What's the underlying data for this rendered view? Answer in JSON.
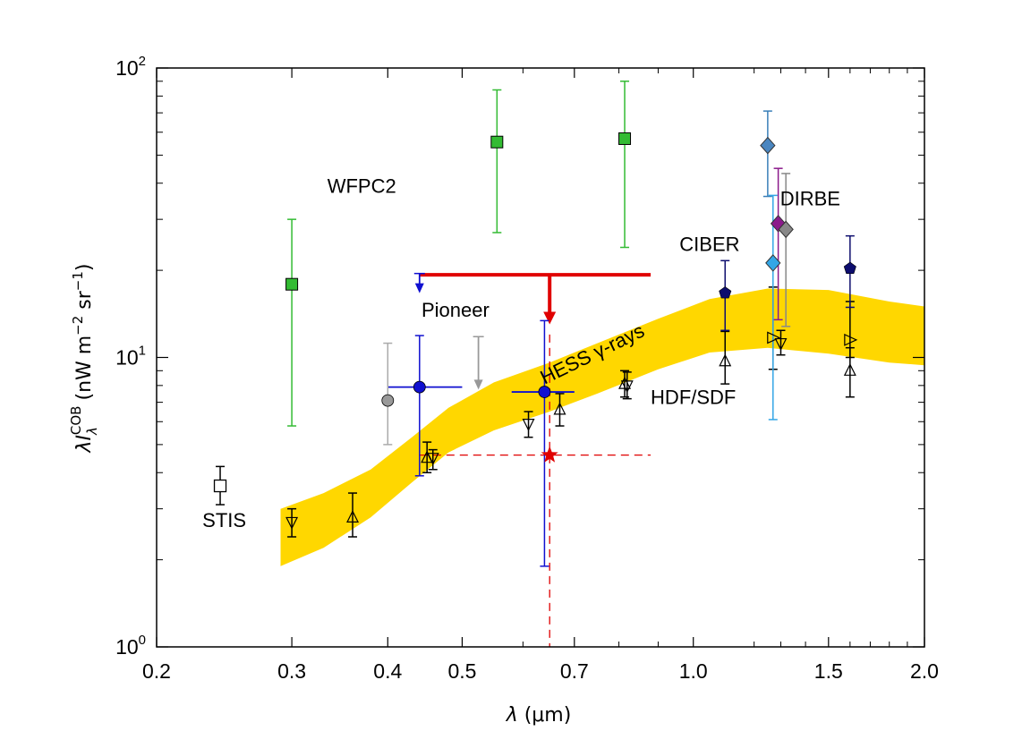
{
  "chart_data": {
    "type": "scatter",
    "title": "",
    "xlabel": "λ (μm)",
    "ylabel": "λI_λ^COB (nW m^-2 sr^-1)",
    "xscale": "log",
    "yscale": "log",
    "xlim": [
      0.2,
      2.0
    ],
    "ylim": [
      1,
      100
    ],
    "grid": false,
    "x_ticks": [
      {
        "value": 0.2,
        "label": "0.2"
      },
      {
        "value": 0.3,
        "label": "0.3"
      },
      {
        "value": 0.4,
        "label": "0.4"
      },
      {
        "value": 0.5,
        "label": "0.5"
      },
      {
        "value": 0.7,
        "label": "0.7"
      },
      {
        "value": 1.0,
        "label": "1.0"
      },
      {
        "value": 1.5,
        "label": "1.5"
      },
      {
        "value": 2.0,
        "label": "2.0"
      }
    ],
    "y_ticks": [
      {
        "value": 1,
        "base": "10",
        "exp": "0"
      },
      {
        "value": 10,
        "base": "10",
        "exp": "1"
      },
      {
        "value": 100,
        "base": "10",
        "exp": "2"
      }
    ],
    "ylabel_parts": {
      "lambda": "λ",
      "I": "I",
      "sub": "λ",
      "sup": "COB",
      "units": "(nW m",
      "m_exp": "−2",
      "sr": " sr",
      "sr_exp": "−1",
      "close": ")"
    },
    "xlabel_parts": {
      "lambda": "λ",
      "units": " (μm)"
    },
    "band": {
      "name": "HESS γ-rays",
      "color": "#FFD700",
      "upper": [
        [
          0.29,
          3.0
        ],
        [
          0.33,
          3.4
        ],
        [
          0.38,
          4.1
        ],
        [
          0.43,
          5.3
        ],
        [
          0.48,
          6.7
        ],
        [
          0.55,
          8.2
        ],
        [
          0.65,
          9.6
        ],
        [
          0.75,
          11.2
        ],
        [
          0.9,
          13.6
        ],
        [
          1.05,
          15.9
        ],
        [
          1.25,
          17.3
        ],
        [
          1.5,
          17.1
        ],
        [
          1.8,
          15.6
        ],
        [
          2.0,
          15.0
        ]
      ],
      "lower": [
        [
          2.0,
          9.4
        ],
        [
          1.8,
          9.6
        ],
        [
          1.5,
          10.3
        ],
        [
          1.25,
          10.8
        ],
        [
          1.05,
          10.4
        ],
        [
          0.9,
          9.1
        ],
        [
          0.75,
          7.5
        ],
        [
          0.65,
          6.5
        ],
        [
          0.55,
          5.6
        ],
        [
          0.48,
          4.7
        ],
        [
          0.43,
          3.7
        ],
        [
          0.38,
          2.8
        ],
        [
          0.33,
          2.2
        ],
        [
          0.29,
          1.9
        ]
      ]
    },
    "series": [
      {
        "name": "WFPC2",
        "marker": "square",
        "color": "#33BB33",
        "errcolor": "#33BB33",
        "points": [
          {
            "x": 0.3,
            "y": 17.9,
            "ylo": 5.8,
            "yhi": 30
          },
          {
            "x": 0.555,
            "y": 55.5,
            "ylo": 27,
            "yhi": 84
          },
          {
            "x": 0.814,
            "y": 57,
            "ylo": 24,
            "yhi": 90
          }
        ]
      },
      {
        "name": "STIS",
        "marker": "square-open",
        "color": "#000000",
        "errcolor": "#000000",
        "points": [
          {
            "x": 0.242,
            "y": 3.6,
            "ylo": 3.1,
            "yhi": 4.2
          }
        ]
      },
      {
        "name": "Pioneer",
        "marker": "circle",
        "color": "#1010D0",
        "errcolor": "#1010D0",
        "points": [
          {
            "x": 0.44,
            "y": 7.9,
            "ylo": 3.9,
            "yhi": 11.9,
            "xlo": 0.4,
            "xhi": 0.5
          },
          {
            "x": 0.64,
            "y": 7.6,
            "ylo": 1.9,
            "yhi": 13.4,
            "xlo": 0.58,
            "xhi": 0.7
          }
        ]
      },
      {
        "name": "",
        "marker": "circle",
        "color": "#999999",
        "errcolor": "#AAAAAA",
        "points": [
          {
            "x": 0.4,
            "y": 7.1,
            "ylo": 5.0,
            "yhi": 11.2
          }
        ]
      },
      {
        "name": "",
        "marker": "uplimit",
        "color": "#999999",
        "errcolor": "#999999",
        "points": [
          {
            "x": 0.525,
            "y": 11.8,
            "ylo": 7.8
          }
        ]
      },
      {
        "name": "",
        "marker": "uplimit",
        "color": "#1010D0",
        "errcolor": "#1010D0",
        "points": [
          {
            "x": 0.44,
            "y": 19.5,
            "ylo": 16.8
          }
        ]
      },
      {
        "name": "HDF/SDF",
        "marker": "triangle-up-open",
        "color": "#000000",
        "errcolor": "#000000",
        "points": [
          {
            "x": 0.36,
            "y": 2.8,
            "ylo": 2.4,
            "yhi": 3.4
          },
          {
            "x": 0.45,
            "y": 4.5,
            "ylo": 4.0,
            "yhi": 5.1
          },
          {
            "x": 0.67,
            "y": 6.6,
            "ylo": 5.8,
            "yhi": 7.5
          },
          {
            "x": 0.814,
            "y": 8.1,
            "ylo": 7.3,
            "yhi": 9.0
          },
          {
            "x": 1.1,
            "y": 9.7,
            "ylo": 8.1,
            "yhi": 12.3
          },
          {
            "x": 1.6,
            "y": 9.0,
            "ylo": 7.3,
            "yhi": 10.8
          }
        ]
      },
      {
        "name": "",
        "marker": "triangle-down-open",
        "color": "#000000",
        "errcolor": "#000000",
        "points": [
          {
            "x": 0.3,
            "y": 2.7,
            "ylo": 2.4,
            "yhi": 3.0
          },
          {
            "x": 0.458,
            "y": 4.5,
            "ylo": 4.1,
            "yhi": 4.8
          },
          {
            "x": 0.61,
            "y": 5.9,
            "ylo": 5.3,
            "yhi": 6.5
          },
          {
            "x": 0.82,
            "y": 8.0,
            "ylo": 7.2,
            "yhi": 8.9
          },
          {
            "x": 1.3,
            "y": 11.2,
            "ylo": 10.2,
            "yhi": 12.4
          }
        ]
      },
      {
        "name": "",
        "marker": "triangle-right-open",
        "color": "#000000",
        "errcolor": "#000000",
        "points": [
          {
            "x": 1.27,
            "y": 11.7,
            "ylo": 9.1,
            "yhi": 17.5
          },
          {
            "x": 1.6,
            "y": 11.5,
            "ylo": 10.0,
            "yhi": 15.6
          }
        ]
      },
      {
        "name": "CIBER",
        "marker": "pentagon",
        "color": "#0D0D6E",
        "errcolor": "#0D0D6E",
        "points": [
          {
            "x": 1.1,
            "y": 16.7,
            "ylo": 12.4,
            "yhi": 21.6
          },
          {
            "x": 1.6,
            "y": 20.3,
            "ylo": 14.9,
            "yhi": 26.3
          }
        ]
      },
      {
        "name": "DIRBE",
        "marker": "diamond",
        "color": "#4A86C0",
        "errcolor": "#3A7FB8",
        "points": [
          {
            "x": 1.25,
            "y": 54,
            "ylo": 36,
            "yhi": 71
          }
        ]
      },
      {
        "name": "",
        "marker": "diamond",
        "color": "#33A6E6",
        "errcolor": "#33A6E6",
        "points": [
          {
            "x": 1.27,
            "y": 21.2,
            "ylo": 6.1,
            "yhi": 36.3
          }
        ]
      },
      {
        "name": "",
        "marker": "diamond",
        "color": "#8B1A8B",
        "errcolor": "#8B1A8B",
        "points": [
          {
            "x": 1.29,
            "y": 29.0,
            "ylo": 13.5,
            "yhi": 45.0
          }
        ]
      },
      {
        "name": "",
        "marker": "diamond",
        "color": "#888888",
        "errcolor": "#888888",
        "points": [
          {
            "x": 1.32,
            "y": 27.7,
            "ylo": 12.8,
            "yhi": 43.2
          }
        ]
      }
    ],
    "red_limit": {
      "color": "#E00000",
      "y": 19.3,
      "x_start": 0.44,
      "x_end": 0.88,
      "x_drop": 0.65,
      "y_arrow": 13.2
    },
    "red_star": {
      "x": 0.65,
      "y": 4.6,
      "color": "#E00000",
      "dash_x_start": 0.44,
      "dash_x_end": 0.88,
      "dash_y_top": 12.0
    },
    "annotations": [
      {
        "text": "WFPC2",
        "x": 0.37,
        "y": 37,
        "rotate": 0
      },
      {
        "text": "Pioneer",
        "x": 0.49,
        "y": 13.8,
        "rotate": 0
      },
      {
        "text": "STIS",
        "x": 0.245,
        "y": 2.6,
        "rotate": 0
      },
      {
        "text": "CIBER",
        "x": 1.05,
        "y": 23.3,
        "rotate": 0
      },
      {
        "text": "DIRBE",
        "x": 1.42,
        "y": 33.5,
        "rotate": 0
      },
      {
        "text": "HDF/SDF",
        "x": 1.0,
        "y": 6.9,
        "rotate": 0
      },
      {
        "text": "HESS γ-rays",
        "x": 0.745,
        "y": 9.8,
        "rotate": -26
      }
    ]
  }
}
